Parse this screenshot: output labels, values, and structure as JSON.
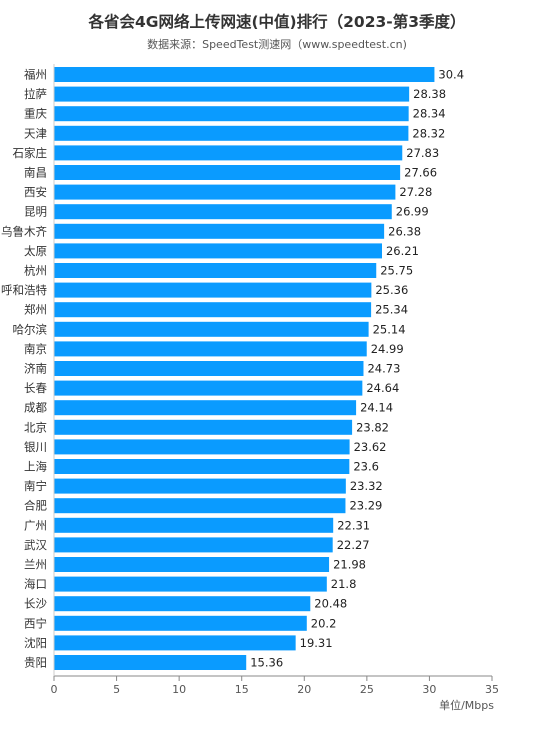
{
  "chart_data": {
    "type": "bar",
    "orientation": "horizontal",
    "title": "各省会4G网络上传网速(中值)排行（2023-第3季度）",
    "subtitle": "数据来源：SpeedTest测速网（www.speedtest.cn)",
    "unit_label": "单位/Mbps",
    "xlim": [
      0,
      35
    ],
    "xticks": [
      0,
      5,
      10,
      15,
      20,
      25,
      30,
      35
    ],
    "grid": false,
    "bar_color": "#0a9bff",
    "categories": [
      "福州",
      "拉萨",
      "重庆",
      "天津",
      "石家庄",
      "南昌",
      "西安",
      "昆明",
      "乌鲁木齐",
      "太原",
      "杭州",
      "呼和浩特",
      "郑州",
      "哈尔滨",
      "南京",
      "济南",
      "长春",
      "成都",
      "北京",
      "银川",
      "上海",
      "南宁",
      "合肥",
      "广州",
      "武汉",
      "兰州",
      "海口",
      "长沙",
      "西宁",
      "沈阳",
      "贵阳"
    ],
    "values": [
      30.4,
      28.38,
      28.34,
      28.32,
      27.83,
      27.66,
      27.28,
      26.99,
      26.38,
      26.21,
      25.75,
      25.36,
      25.34,
      25.14,
      24.99,
      24.73,
      24.64,
      24.14,
      23.82,
      23.62,
      23.6,
      23.32,
      23.29,
      22.31,
      22.27,
      21.98,
      21.8,
      20.48,
      20.2,
      19.31,
      15.36
    ],
    "value_labels": [
      "30.4",
      "28.38",
      "28.34",
      "28.32",
      "27.83",
      "27.66",
      "27.28",
      "26.99",
      "26.38",
      "26.21",
      "25.75",
      "25.36",
      "25.34",
      "25.14",
      "24.99",
      "24.73",
      "24.64",
      "24.14",
      "23.82",
      "23.62",
      "23.6",
      "23.32",
      "23.29",
      "22.31",
      "22.27",
      "21.98",
      "21.8",
      "20.48",
      "20.2",
      "19.31",
      "15.36"
    ]
  }
}
